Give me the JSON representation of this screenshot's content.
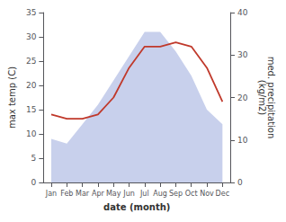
{
  "chart_data": {
    "type": "line",
    "xlabel": "date (month)",
    "ylabel": "max temp (C)",
    "y2label": "med. precipitation\n(kg/m2)",
    "categories": [
      "Jan",
      "Feb",
      "Mar",
      "Apr",
      "May",
      "Jun",
      "Jul",
      "Aug",
      "Sep",
      "Oct",
      "Nov",
      "Dec"
    ],
    "series": [
      {
        "type": "area",
        "color": "#c8d0ec",
        "values": [
          9,
          8,
          12,
          16,
          21,
          26,
          31,
          31,
          27,
          22,
          15,
          12
        ]
      },
      {
        "type": "line",
        "axis": "y2",
        "color": "#c0392b",
        "values": [
          16,
          15,
          15,
          16,
          20,
          27,
          32,
          32,
          33,
          32,
          27,
          19
        ]
      }
    ],
    "ylim": [
      0,
      35
    ],
    "yticks": [
      0,
      5,
      10,
      15,
      20,
      25,
      30,
      35
    ],
    "y2lim": [
      0,
      40
    ],
    "y2ticks": [
      0,
      10,
      20,
      30,
      40
    ],
    "grid": false
  }
}
